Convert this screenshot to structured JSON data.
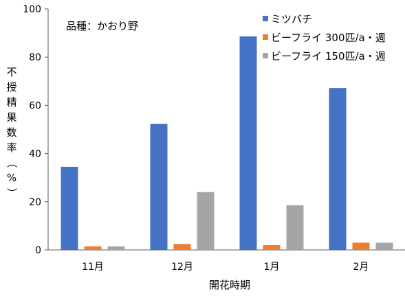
{
  "chart_data": {
    "type": "bar",
    "annotation": "品種：かおり野",
    "categories": [
      "11月",
      "12月",
      "1月",
      "2月"
    ],
    "series": [
      {
        "name": "ミツバチ",
        "color": "#4472C4",
        "values": [
          34.5,
          52.3,
          88.6,
          67.2
        ]
      },
      {
        "name": "ビーフライ 300匹/a・週",
        "color": "#ED7D31",
        "values": [
          1.5,
          2.5,
          2.0,
          3.0
        ]
      },
      {
        "name": "ビーフライ 150匹/a・週",
        "color": "#A5A5A5",
        "values": [
          1.5,
          24.0,
          18.5,
          3.0
        ]
      }
    ],
    "ylabel": "不授精果数率（%）",
    "xlabel": "開花時期",
    "ylim": [
      0,
      100
    ],
    "yticks": [
      0,
      20,
      40,
      60,
      80,
      100
    ],
    "grid": false,
    "legend_position": "top-right"
  }
}
